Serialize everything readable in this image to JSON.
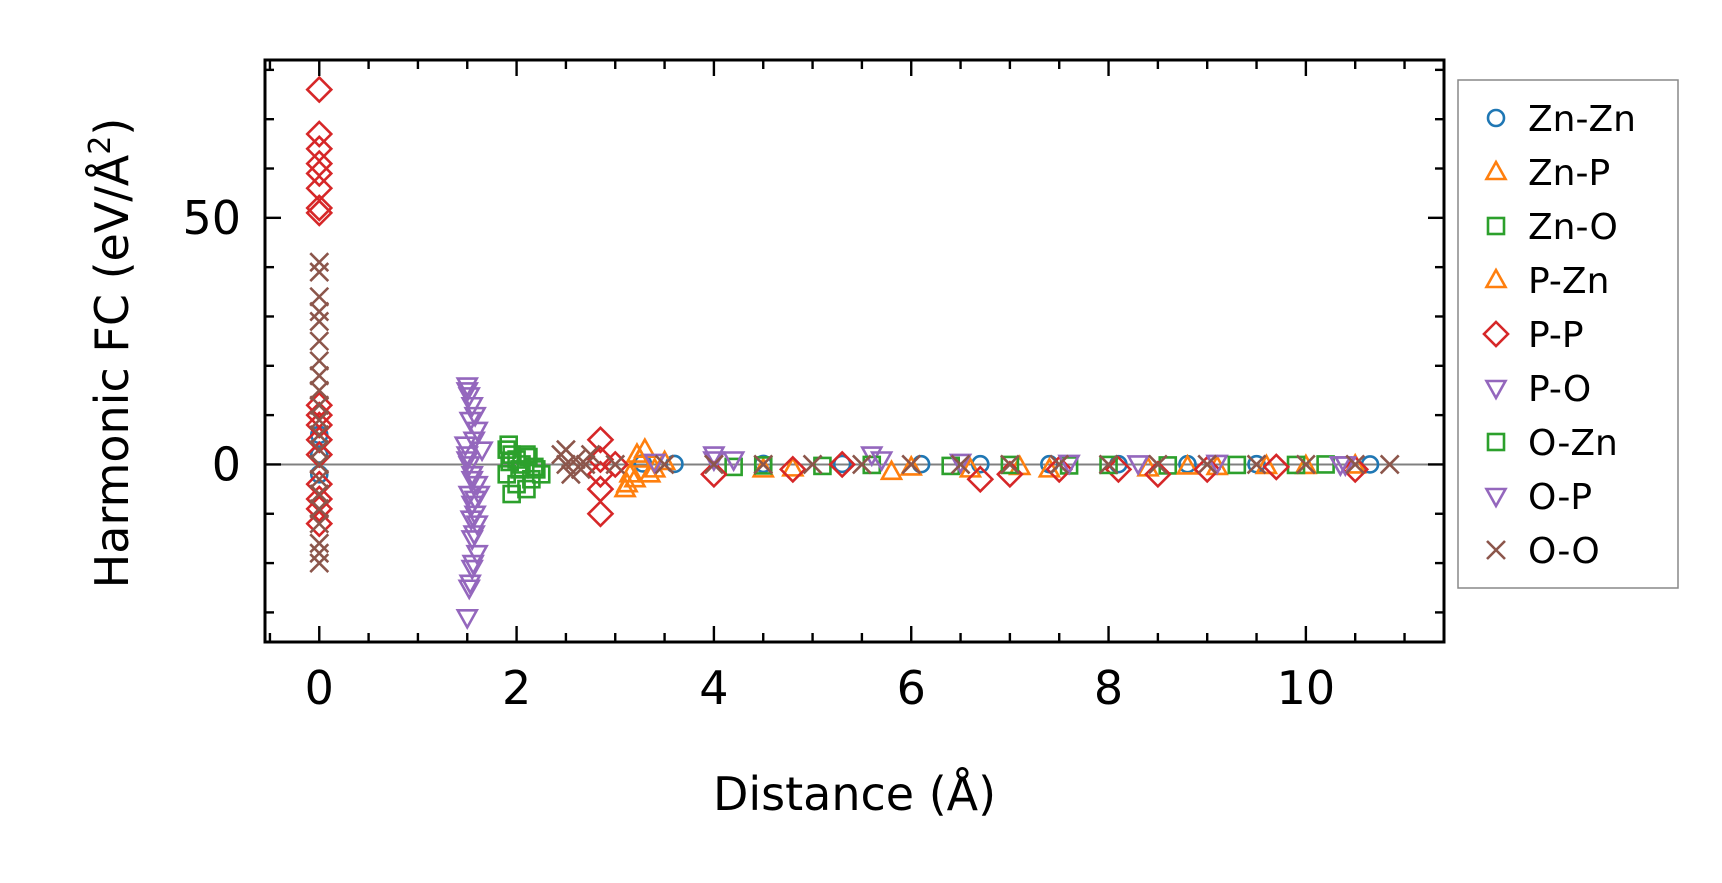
{
  "chart_data": {
    "type": "scatter",
    "xlabel": "Distance (Å)",
    "ylabel": "Harmonic FC (eV/Å",
    "ylabel_sup": "2",
    "ylabel_close": ")",
    "xlim": [
      -0.55,
      11.4
    ],
    "ylim": [
      -36,
      82
    ],
    "x_ticks": [
      0,
      2,
      4,
      6,
      8,
      10
    ],
    "x_tick_labels": [
      "0",
      "2",
      "4",
      "6",
      "8",
      "10"
    ],
    "y_ticks": [
      0,
      50
    ],
    "y_tick_labels": [
      "0",
      "50"
    ],
    "x_minor_step": 0.5,
    "y_minor_step": 10,
    "zero_line": 0,
    "legend_position": "outside-right",
    "series": [
      {
        "name": "Zn-Zn",
        "marker": "circle",
        "color": "#1f77b4",
        "points": [
          [
            0,
            6
          ],
          [
            0,
            2
          ],
          [
            0,
            -2
          ],
          [
            3.28,
            0.2
          ],
          [
            3.6,
            0.1
          ],
          [
            4.5,
            0.1
          ],
          [
            5.3,
            0.1
          ],
          [
            6.1,
            0.05
          ],
          [
            6.7,
            0.05
          ],
          [
            7.4,
            0.05
          ],
          [
            8.1,
            0.05
          ],
          [
            8.8,
            0.05
          ],
          [
            9.5,
            0.05
          ],
          [
            10.65,
            0
          ]
        ]
      },
      {
        "name": "Zn-P",
        "marker": "triangle-up",
        "color": "#ff7f0e",
        "points": [
          [
            3.1,
            -5
          ],
          [
            3.2,
            -3
          ],
          [
            3.25,
            1
          ],
          [
            3.3,
            3
          ],
          [
            3.15,
            -2
          ],
          [
            3.4,
            -1
          ],
          [
            3.5,
            0.5
          ],
          [
            4.5,
            -1
          ],
          [
            5.8,
            -1.5
          ],
          [
            6.6,
            -1
          ],
          [
            7.4,
            -1
          ],
          [
            8.4,
            -0.8
          ],
          [
            9.1,
            -0.5
          ],
          [
            10,
            -0.3
          ],
          [
            10.5,
            -0.2
          ]
        ]
      },
      {
        "name": "Zn-O",
        "marker": "square",
        "color": "#2ca02c",
        "points": [
          [
            1.9,
            3
          ],
          [
            1.95,
            2
          ],
          [
            2.0,
            1
          ],
          [
            2.05,
            0
          ],
          [
            1.9,
            -2
          ],
          [
            2.0,
            -4
          ],
          [
            2.1,
            -5
          ],
          [
            1.95,
            -6
          ],
          [
            2.15,
            -3
          ],
          [
            2.2,
            -1
          ],
          [
            2.25,
            -2
          ],
          [
            1.92,
            4
          ],
          [
            2.1,
            2
          ],
          [
            4.2,
            -0.5
          ],
          [
            5.1,
            -0.3
          ],
          [
            6.4,
            -0.3
          ],
          [
            7.6,
            -0.2
          ],
          [
            8.6,
            -0.2
          ],
          [
            9.9,
            -0.1
          ]
        ]
      },
      {
        "name": "P-Zn",
        "marker": "triangle-up",
        "color": "#ff7f0e",
        "points": [
          [
            3.12,
            -4
          ],
          [
            3.22,
            2
          ],
          [
            3.35,
            -2
          ],
          [
            4.8,
            -0.8
          ],
          [
            6.0,
            -0.6
          ],
          [
            7.1,
            -0.5
          ],
          [
            8.8,
            -0.4
          ],
          [
            9.6,
            -0.3
          ]
        ]
      },
      {
        "name": "P-P",
        "marker": "diamond",
        "color": "#d62728",
        "points": [
          [
            0,
            76
          ],
          [
            0,
            67
          ],
          [
            0,
            64
          ],
          [
            0,
            61
          ],
          [
            0,
            59
          ],
          [
            0,
            56
          ],
          [
            0,
            51
          ],
          [
            0,
            52
          ],
          [
            0,
            12
          ],
          [
            0,
            10
          ],
          [
            0,
            8
          ],
          [
            0,
            5
          ],
          [
            0,
            2
          ],
          [
            0,
            -4
          ],
          [
            0,
            -7
          ],
          [
            0,
            -9
          ],
          [
            0,
            -12
          ],
          [
            2.85,
            -10
          ],
          [
            2.85,
            5
          ],
          [
            2.85,
            1
          ],
          [
            2.85,
            -2
          ],
          [
            2.85,
            -5
          ],
          [
            3.0,
            0
          ],
          [
            4.0,
            -2
          ],
          [
            4.8,
            -1
          ],
          [
            5.3,
            0
          ],
          [
            6.7,
            -3
          ],
          [
            7.0,
            -2
          ],
          [
            7.5,
            -1
          ],
          [
            8.1,
            -1
          ],
          [
            8.5,
            -2
          ],
          [
            9.0,
            -1
          ],
          [
            9.7,
            -0.5
          ],
          [
            10.5,
            -1
          ]
        ]
      },
      {
        "name": "P-O",
        "marker": "triangle-down",
        "color": "#9467bd",
        "points": [
          [
            1.5,
            16
          ],
          [
            1.52,
            14
          ],
          [
            1.55,
            12
          ],
          [
            1.58,
            10
          ],
          [
            1.6,
            7
          ],
          [
            1.48,
            4
          ],
          [
            1.5,
            2
          ],
          [
            1.52,
            0
          ],
          [
            1.55,
            -2
          ],
          [
            1.6,
            -4
          ],
          [
            1.52,
            -6
          ],
          [
            1.55,
            -8
          ],
          [
            1.58,
            -10
          ],
          [
            1.6,
            -12
          ],
          [
            1.55,
            -15
          ],
          [
            1.6,
            -18
          ],
          [
            1.55,
            -21
          ],
          [
            1.52,
            -25
          ],
          [
            1.5,
            -31
          ],
          [
            1.65,
            3
          ],
          [
            1.62,
            -6
          ],
          [
            3.4,
            0.5
          ],
          [
            4.0,
            2
          ],
          [
            4.2,
            1
          ],
          [
            5.6,
            2
          ],
          [
            6.5,
            0.5
          ],
          [
            7.6,
            0.3
          ],
          [
            8.3,
            0.2
          ],
          [
            9.1,
            0.3
          ],
          [
            10.4,
            0
          ]
        ]
      },
      {
        "name": "O-Zn",
        "marker": "square",
        "color": "#2ca02c",
        "points": [
          [
            1.93,
            0.5
          ],
          [
            2.03,
            -1
          ],
          [
            2.12,
            1.5
          ],
          [
            2.18,
            -0.5
          ],
          [
            4.5,
            -0.2
          ],
          [
            5.6,
            -0.1
          ],
          [
            7.0,
            -0.1
          ],
          [
            8.0,
            -0.1
          ],
          [
            9.3,
            -0.1
          ],
          [
            10.2,
            0
          ]
        ]
      },
      {
        "name": "O-P",
        "marker": "triangle-down",
        "color": "#9467bd",
        "points": [
          [
            1.5,
            15
          ],
          [
            1.53,
            9
          ],
          [
            1.57,
            5
          ],
          [
            1.5,
            1
          ],
          [
            1.55,
            -3
          ],
          [
            1.58,
            -7
          ],
          [
            1.54,
            -11
          ],
          [
            1.57,
            -14
          ],
          [
            1.56,
            -20
          ],
          [
            1.53,
            -24
          ],
          [
            4.0,
            1
          ],
          [
            5.7,
            1
          ],
          [
            10.35,
            0
          ]
        ]
      },
      {
        "name": "O-O",
        "marker": "x",
        "color": "#8c564b",
        "points": [
          [
            0,
            41
          ],
          [
            0,
            39
          ],
          [
            0,
            34
          ],
          [
            0,
            31
          ],
          [
            0,
            29
          ],
          [
            0,
            25
          ],
          [
            0,
            21
          ],
          [
            0,
            18
          ],
          [
            0,
            15
          ],
          [
            0,
            12
          ],
          [
            0,
            9
          ],
          [
            0,
            6
          ],
          [
            0,
            3
          ],
          [
            0,
            0
          ],
          [
            0,
            -3
          ],
          [
            0,
            -6
          ],
          [
            0,
            -9
          ],
          [
            0,
            -12
          ],
          [
            0,
            -16
          ],
          [
            0,
            -18
          ],
          [
            0,
            -20
          ],
          [
            2.45,
            2
          ],
          [
            2.5,
            0
          ],
          [
            2.55,
            -2
          ],
          [
            2.6,
            1
          ],
          [
            2.65,
            -1
          ],
          [
            2.5,
            3
          ],
          [
            2.7,
            0
          ],
          [
            2.75,
            2
          ],
          [
            3.0,
            0
          ],
          [
            3.5,
            0
          ],
          [
            4.0,
            0
          ],
          [
            4.5,
            0
          ],
          [
            5.0,
            0
          ],
          [
            5.5,
            0
          ],
          [
            6.0,
            0
          ],
          [
            6.5,
            0
          ],
          [
            7.0,
            0
          ],
          [
            7.5,
            0
          ],
          [
            8.0,
            0
          ],
          [
            8.5,
            0
          ],
          [
            9.0,
            0
          ],
          [
            9.5,
            0
          ],
          [
            10.0,
            0
          ],
          [
            10.5,
            0
          ],
          [
            10.85,
            0
          ]
        ]
      }
    ]
  }
}
